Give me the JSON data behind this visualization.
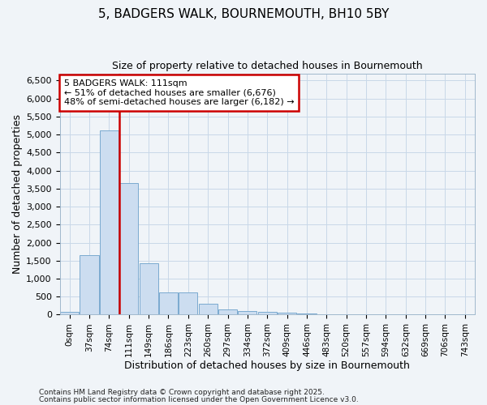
{
  "title1": "5, BADGERS WALK, BOURNEMOUTH, BH10 5BY",
  "title2": "Size of property relative to detached houses in Bournemouth",
  "xlabel": "Distribution of detached houses by size in Bournemouth",
  "ylabel": "Number of detached properties",
  "bin_labels": [
    "0sqm",
    "37sqm",
    "74sqm",
    "111sqm",
    "149sqm",
    "186sqm",
    "223sqm",
    "260sqm",
    "297sqm",
    "334sqm",
    "372sqm",
    "409sqm",
    "446sqm",
    "483sqm",
    "520sqm",
    "557sqm",
    "594sqm",
    "632sqm",
    "669sqm",
    "706sqm",
    "743sqm"
  ],
  "bar_values": [
    75,
    1650,
    5120,
    3650,
    1430,
    620,
    620,
    310,
    155,
    100,
    75,
    50,
    25,
    0,
    0,
    0,
    0,
    0,
    0,
    0,
    0
  ],
  "bar_color": "#ccddf0",
  "bar_edgecolor": "#7aaacf",
  "vline_x": 2.5,
  "vline_color": "#cc0000",
  "annotation_text": "5 BADGERS WALK: 111sqm\n← 51% of detached houses are smaller (6,676)\n48% of semi-detached houses are larger (6,182) →",
  "annotation_box_facecolor": "#ffffff",
  "annotation_box_edgecolor": "#cc0000",
  "ylim_max": 6700,
  "yticks": [
    0,
    500,
    1000,
    1500,
    2000,
    2500,
    3000,
    3500,
    4000,
    4500,
    5000,
    5500,
    6000,
    6500
  ],
  "grid_color": "#c8d8e8",
  "bg_color": "#f0f4f8",
  "footer1": "Contains HM Land Registry data © Crown copyright and database right 2025.",
  "footer2": "Contains public sector information licensed under the Open Government Licence v3.0."
}
